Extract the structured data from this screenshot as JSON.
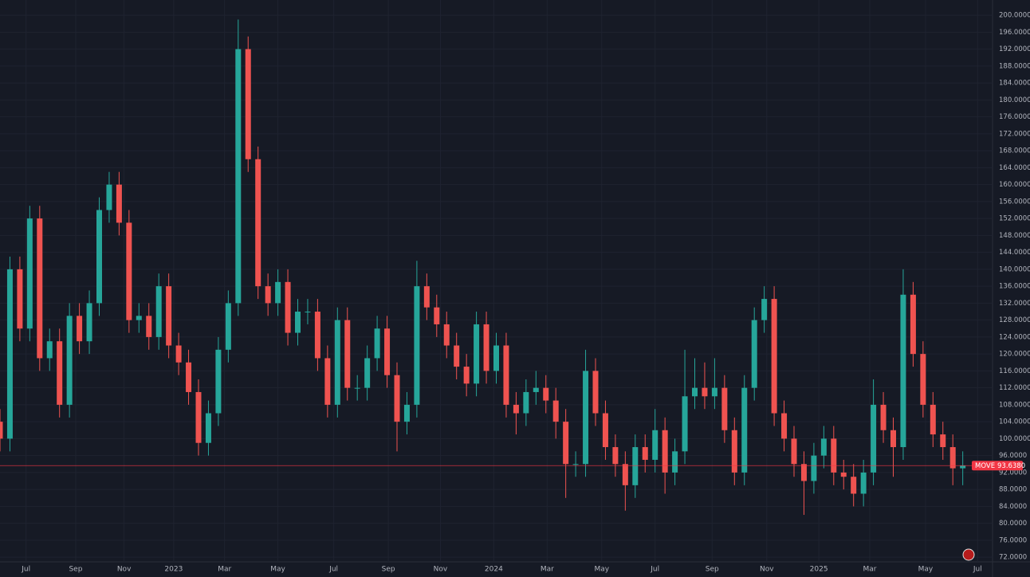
{
  "chart_data": {
    "type": "candlestick",
    "up_color": "#26a69a",
    "down_color": "#ef5350",
    "grid": true,
    "x": [
      0,
      8,
      16,
      24,
      32,
      40,
      48,
      56,
      64,
      72,
      80,
      88,
      96,
      104,
      112,
      120,
      128,
      136,
      144,
      152,
      160,
      168,
      176,
      184,
      192,
      200,
      208,
      216,
      224,
      232,
      240,
      248,
      256,
      264,
      272,
      280,
      288,
      296,
      304,
      312,
      320,
      328,
      336,
      344,
      352,
      360,
      368,
      376,
      384,
      392,
      400,
      408,
      416,
      424,
      432,
      440,
      448,
      456,
      464,
      472,
      480,
      488,
      496,
      504,
      512,
      520,
      528,
      536,
      544,
      552,
      560,
      568,
      576,
      584,
      592,
      600,
      608,
      616,
      624,
      632,
      640,
      648,
      656,
      664,
      672,
      680,
      688,
      696,
      704,
      712,
      720,
      728,
      736,
      744,
      752,
      760,
      768,
      776
    ],
    "open": [
      104,
      100,
      140,
      126,
      152,
      119,
      123,
      108,
      129,
      123,
      132,
      154,
      160,
      151,
      128,
      129,
      124,
      136,
      122,
      118,
      111,
      99,
      106,
      121,
      132,
      192,
      166,
      136,
      132,
      137,
      125,
      130,
      130,
      119,
      108,
      128,
      112,
      112,
      119,
      126,
      115,
      104,
      108,
      136,
      131,
      127,
      122,
      117,
      113,
      127,
      116,
      122,
      108,
      106,
      111,
      112,
      109,
      104,
      94,
      94,
      116,
      106,
      98,
      94,
      89,
      98,
      95,
      102,
      92,
      97,
      110,
      112,
      110,
      112,
      102,
      92,
      112,
      128,
      133,
      106,
      100,
      94,
      90,
      96,
      100,
      92,
      91,
      87,
      92,
      108,
      102,
      98,
      134,
      120,
      108,
      101,
      98,
      93
    ],
    "high": [
      107,
      143,
      143,
      155,
      155,
      126,
      126,
      132,
      132,
      135,
      157,
      163,
      163,
      154,
      132,
      132,
      139,
      139,
      125,
      121,
      114,
      109,
      124,
      135,
      199,
      195,
      169,
      139,
      140,
      140,
      133,
      133,
      133,
      122,
      131,
      131,
      115,
      122,
      129,
      129,
      118,
      111,
      142,
      139,
      134,
      130,
      125,
      120,
      130,
      130,
      125,
      125,
      111,
      114,
      116,
      115,
      112,
      107,
      97,
      121,
      119,
      109,
      101,
      97,
      101,
      101,
      107,
      105,
      100,
      121,
      119,
      118,
      119,
      115,
      105,
      115,
      131,
      136,
      136,
      109,
      103,
      97,
      99,
      103,
      103,
      95,
      94,
      95,
      114,
      111,
      105,
      140,
      137,
      123,
      111,
      104,
      101,
      97
    ],
    "low": [
      97,
      97,
      123,
      123,
      116,
      116,
      105,
      105,
      120,
      120,
      129,
      151,
      148,
      125,
      125,
      121,
      121,
      119,
      115,
      108,
      96,
      96,
      103,
      118,
      129,
      163,
      133,
      129,
      129,
      122,
      122,
      127,
      116,
      105,
      105,
      109,
      109,
      109,
      116,
      112,
      97,
      101,
      105,
      128,
      124,
      119,
      114,
      110,
      110,
      113,
      113,
      105,
      101,
      103,
      108,
      106,
      100,
      86,
      91,
      91,
      103,
      95,
      91,
      83,
      86,
      92,
      92,
      87,
      89,
      94,
      107,
      107,
      107,
      99,
      89,
      89,
      109,
      125,
      103,
      97,
      91,
      82,
      87,
      93,
      89,
      88,
      84,
      84,
      89,
      99,
      91,
      95,
      117,
      105,
      98,
      95,
      89,
      89
    ],
    "close": [
      100,
      140,
      126,
      152,
      119,
      123,
      108,
      129,
      123,
      132,
      154,
      160,
      151,
      128,
      129,
      124,
      136,
      122,
      118,
      111,
      99,
      106,
      121,
      132,
      192,
      166,
      136,
      132,
      137,
      125,
      130,
      130,
      119,
      108,
      128,
      112,
      112,
      119,
      126,
      115,
      104,
      108,
      136,
      131,
      127,
      122,
      117,
      113,
      127,
      116,
      122,
      108,
      106,
      111,
      112,
      109,
      104,
      94,
      94,
      116,
      106,
      98,
      94,
      89,
      98,
      95,
      102,
      92,
      97,
      110,
      112,
      110,
      112,
      102,
      92,
      112,
      128,
      133,
      106,
      100,
      94,
      90,
      96,
      100,
      92,
      91,
      87,
      92,
      108,
      102,
      98,
      134,
      120,
      108,
      101,
      98,
      93,
      93.638
    ],
    "last": {
      "name": "MOVE",
      "value": 93.638,
      "label": "93.6380",
      "color": "#f23645"
    },
    "xlim": [
      0,
      800
    ],
    "xticks": [
      {
        "value": 21,
        "label": "Jul"
      },
      {
        "value": 61,
        "label": "Sep"
      },
      {
        "value": 100,
        "label": "Nov"
      },
      {
        "value": 140,
        "label": "2023"
      },
      {
        "value": 181,
        "label": "Mar"
      },
      {
        "value": 224,
        "label": "May"
      },
      {
        "value": 269,
        "label": "Jul"
      },
      {
        "value": 313,
        "label": "Sep"
      },
      {
        "value": 355,
        "label": "Nov"
      },
      {
        "value": 398,
        "label": "2024"
      },
      {
        "value": 441,
        "label": "Mar"
      },
      {
        "value": 485,
        "label": "May"
      },
      {
        "value": 528,
        "label": "Jul"
      },
      {
        "value": 574,
        "label": "Sep"
      },
      {
        "value": 618,
        "label": "Nov"
      },
      {
        "value": 660,
        "label": "2025"
      },
      {
        "value": 701,
        "label": "Mar"
      },
      {
        "value": 746,
        "label": "May"
      },
      {
        "value": 788,
        "label": "Jul"
      }
    ],
    "ylim": [
      70.9,
      203.6
    ],
    "yticks": [
      {
        "value": 72,
        "label": "72.0000"
      },
      {
        "value": 76,
        "label": "76.0000"
      },
      {
        "value": 80,
        "label": "80.0000"
      },
      {
        "value": 84,
        "label": "84.0000"
      },
      {
        "value": 88,
        "label": "88.0000"
      },
      {
        "value": 92,
        "label": "92.0000"
      },
      {
        "value": 96,
        "label": "96.0000"
      },
      {
        "value": 100,
        "label": "100.0000"
      },
      {
        "value": 104,
        "label": "104.0000"
      },
      {
        "value": 108,
        "label": "108.0000"
      },
      {
        "value": 112,
        "label": "112.0000"
      },
      {
        "value": 116,
        "label": "116.0000"
      },
      {
        "value": 120,
        "label": "120.0000"
      },
      {
        "value": 124,
        "label": "124.0000"
      },
      {
        "value": 128,
        "label": "128.0000"
      },
      {
        "value": 132,
        "label": "132.0000"
      },
      {
        "value": 136,
        "label": "136.0000"
      },
      {
        "value": 140,
        "label": "140.0000"
      },
      {
        "value": 144,
        "label": "144.0000"
      },
      {
        "value": 148,
        "label": "148.0000"
      },
      {
        "value": 152,
        "label": "152.0000"
      },
      {
        "value": 156,
        "label": "156.0000"
      },
      {
        "value": 160,
        "label": "160.0000"
      },
      {
        "value": 164,
        "label": "164.0000"
      },
      {
        "value": 168,
        "label": "168.0000"
      },
      {
        "value": 172,
        "label": "172.0000"
      },
      {
        "value": 176,
        "label": "176.0000"
      },
      {
        "value": 180,
        "label": "180.0000"
      },
      {
        "value": 184,
        "label": "184.0000"
      },
      {
        "value": 188,
        "label": "188.0000"
      },
      {
        "value": 192,
        "label": "192.0000"
      },
      {
        "value": 196,
        "label": "196.0000"
      },
      {
        "value": 200,
        "label": "200.0000"
      }
    ]
  }
}
